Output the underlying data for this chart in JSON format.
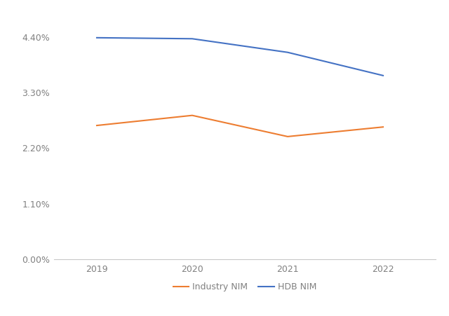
{
  "years": [
    2019,
    2020,
    2021,
    2022
  ],
  "hdb_nim": [
    0.0439,
    0.0437,
    0.041,
    0.0364
  ],
  "industry_nim": [
    0.0265,
    0.0285,
    0.0243,
    0.0262
  ],
  "hdb_color": "#4472C4",
  "industry_color": "#ED7D31",
  "hdb_label": "HDB NIM",
  "industry_label": "Industry NIM",
  "ylim": [
    0.0,
    0.0495
  ],
  "yticks": [
    0.0,
    0.011,
    0.022,
    0.033,
    0.044
  ],
  "ytick_labels": [
    "0.00%",
    "1.10%",
    "2.20%",
    "3.30%",
    "4.40%"
  ],
  "background_color": "#ffffff",
  "line_width": 1.5,
  "tick_color": "#808080",
  "axis_color": "#c8c8c8",
  "xlim_left": 2018.55,
  "xlim_right": 2022.55
}
